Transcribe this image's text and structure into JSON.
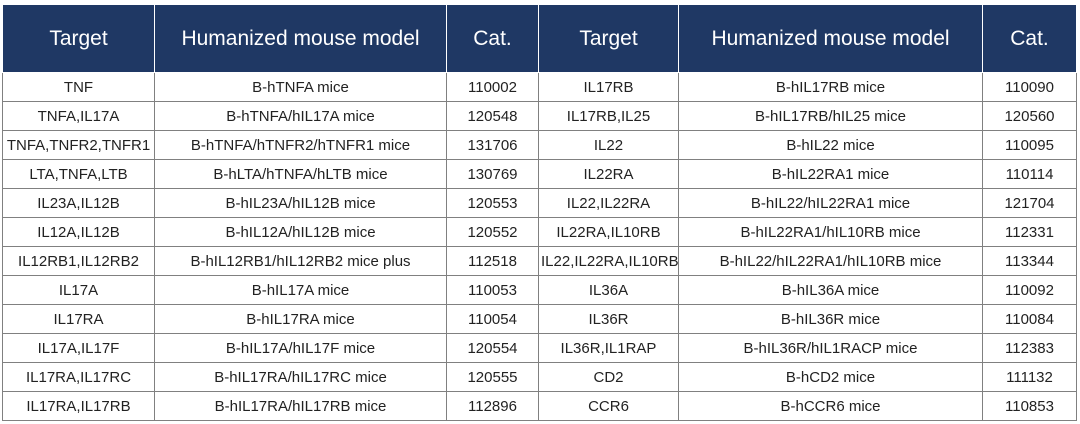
{
  "headers": [
    "Target",
    "Humanized mouse model",
    "Cat.",
    "Target",
    "Humanized mouse model",
    "Cat."
  ],
  "rows": [
    [
      "TNF",
      "B-hTNFA mice",
      "110002",
      "IL17RB",
      "B-hIL17RB mice",
      "110090"
    ],
    [
      "TNFA,IL17A",
      "B-hTNFA/hIL17A mice",
      "120548",
      "IL17RB,IL25",
      "B-hIL17RB/hIL25 mice",
      "120560"
    ],
    [
      "TNFA,TNFR2,TNFR1",
      "B-hTNFA/hTNFR2/hTNFR1 mice",
      "131706",
      "IL22",
      "B-hIL22 mice",
      "110095"
    ],
    [
      "LTA,TNFA,LTB",
      "B-hLTA/hTNFA/hLTB mice",
      "130769",
      "IL22RA",
      "B-hIL22RA1 mice",
      "110114"
    ],
    [
      "IL23A,IL12B",
      "B-hIL23A/hIL12B mice",
      "120553",
      "IL22,IL22RA",
      "B-hIL22/hIL22RA1 mice",
      "121704"
    ],
    [
      "IL12A,IL12B",
      "B-hIL12A/hIL12B mice",
      "120552",
      "IL22RA,IL10RB",
      "B-hIL22RA1/hIL10RB mice",
      "112331"
    ],
    [
      "IL12RB1,IL12RB2",
      "B-hIL12RB1/hIL12RB2 mice plus",
      "112518",
      "IL22,IL22RA,IL10RB",
      "B-hIL22/hIL22RA1/hIL10RB mice",
      "113344"
    ],
    [
      "IL17A",
      "B-hIL17A mice",
      "110053",
      "IL36A",
      "B-hIL36A mice",
      "110092"
    ],
    [
      "IL17RA",
      "B-hIL17RA mice",
      "110054",
      "IL36R",
      "B-hIL36R mice",
      "110084"
    ],
    [
      "IL17A,IL17F",
      "B-hIL17A/hIL17F mice",
      "120554",
      "IL36R,IL1RAP",
      "B-hIL36R/hIL1RACP mice",
      "112383"
    ],
    [
      "IL17RA,IL17RC",
      "B-hIL17RA/hIL17RC mice",
      "120555",
      "CD2",
      "B-hCD2 mice",
      "111132"
    ],
    [
      "IL17RA,IL17RB",
      "B-hIL17RA/hIL17RB mice",
      "112896",
      "CCR6",
      "B-hCCR6 mice",
      "110853"
    ]
  ],
  "colors": {
    "header_bg": "#1f3864",
    "header_text": "#ffffff",
    "grid": "#808080"
  }
}
